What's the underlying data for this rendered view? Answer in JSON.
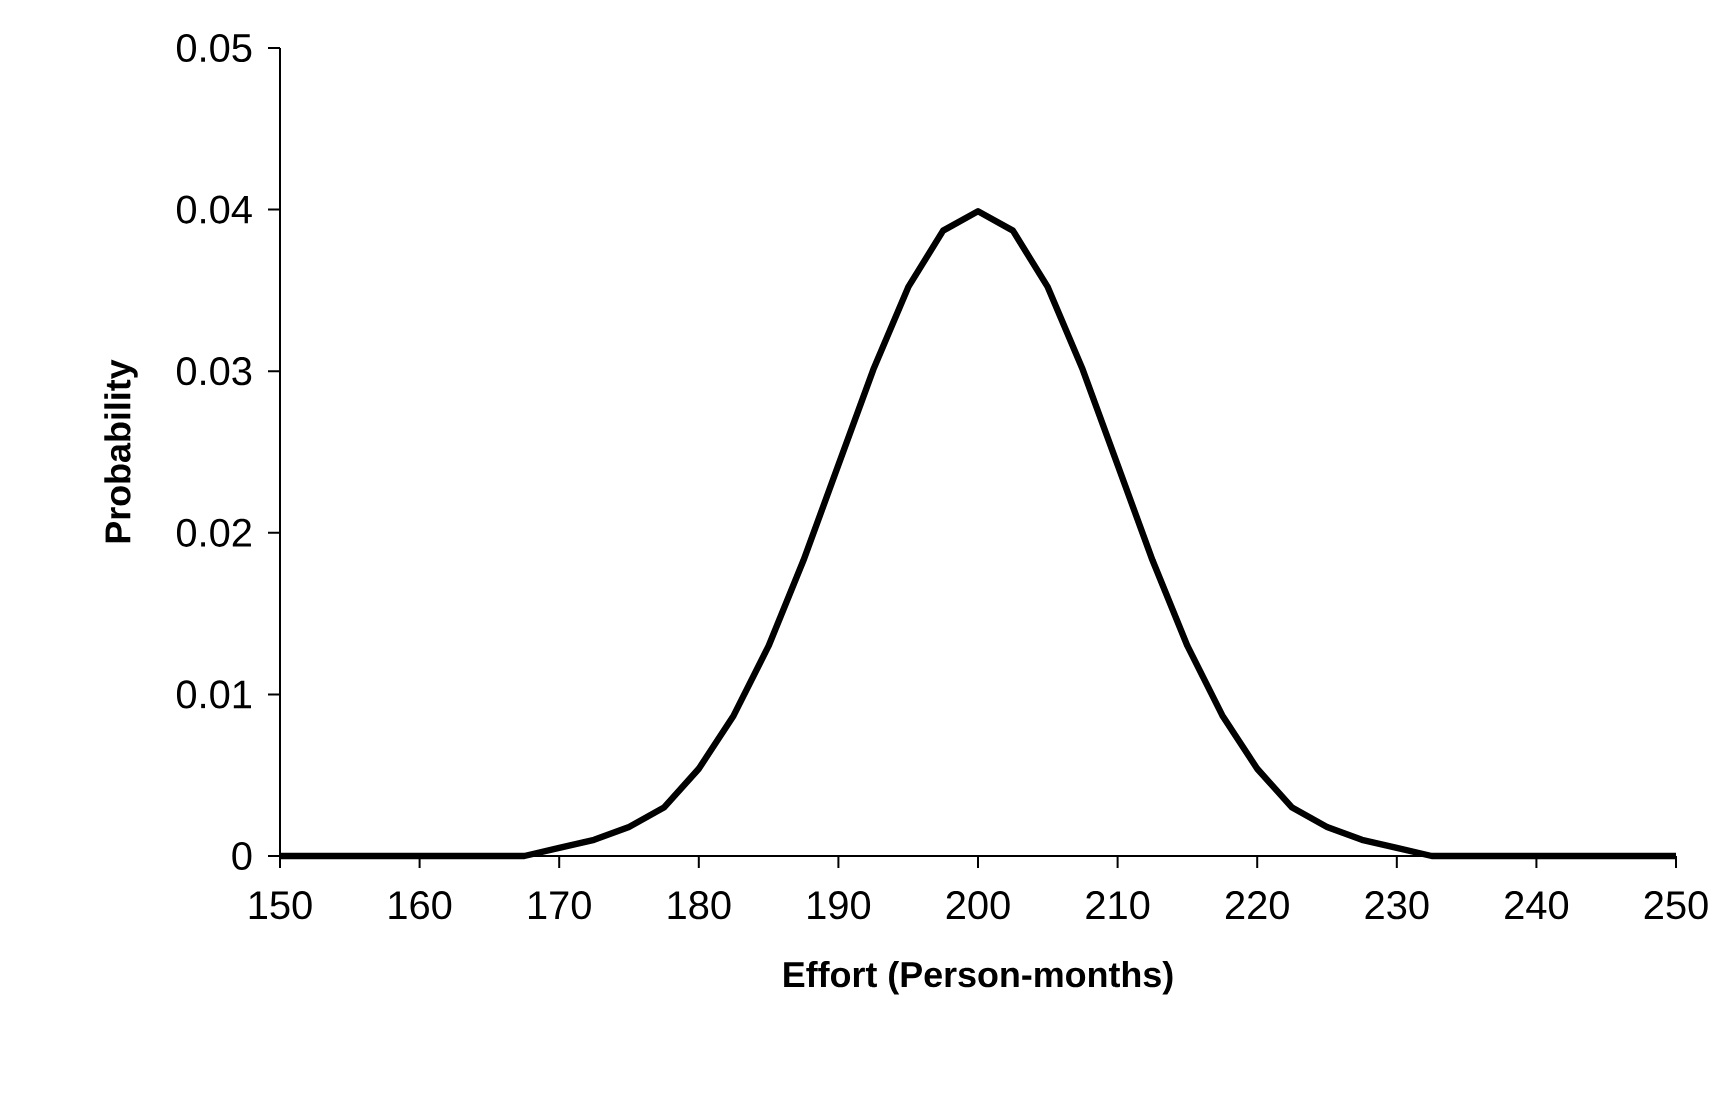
{
  "chart_data": {
    "type": "line",
    "xlabel": "Effort (Person-months)",
    "ylabel": "Probability",
    "x": [
      150,
      167.5,
      170,
      172.5,
      175,
      177.5,
      180,
      182.5,
      185,
      187.5,
      190,
      192.5,
      195,
      197.5,
      200,
      202.5,
      205,
      207.5,
      210,
      212.5,
      215,
      217.5,
      220,
      222.5,
      225,
      227.5,
      230,
      232.5,
      250
    ],
    "series": [
      {
        "color": "#000000",
        "values": [
          0,
          0,
          0.0005,
          0.001,
          0.0018,
          0.003,
          0.0054,
          0.0087,
          0.013,
          0.0183,
          0.0242,
          0.0301,
          0.0352,
          0.0387,
          0.0399,
          0.0387,
          0.0352,
          0.0301,
          0.0242,
          0.0183,
          0.013,
          0.0087,
          0.0054,
          0.003,
          0.0018,
          0.001,
          0.0005,
          0,
          0
        ]
      }
    ],
    "xlim": [
      150,
      250
    ],
    "xticks": [
      150,
      160,
      170,
      180,
      190,
      200,
      210,
      220,
      230,
      240,
      250
    ],
    "ylim": [
      0,
      0.05
    ],
    "yticks": [
      0,
      0.01,
      0.02,
      0.03,
      0.04,
      0.05
    ],
    "marker": "none",
    "line_style": "solid"
  }
}
